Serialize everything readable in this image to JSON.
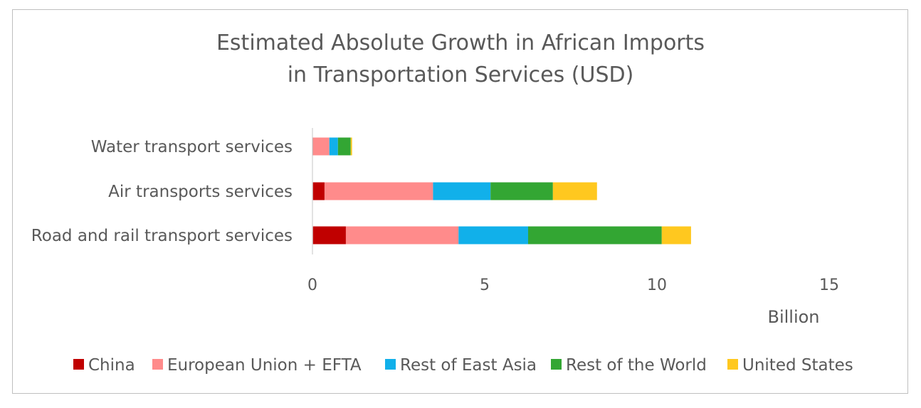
{
  "chart_data": {
    "type": "bar",
    "orientation": "horizontal",
    "stacked": true,
    "title_lines": [
      "Estimated Absolute Growth in African Imports",
      "in Transportation Services (USD)"
    ],
    "categories": [
      "Water transport services",
      "Air transports services",
      "Road and rail transport services"
    ],
    "series": [
      {
        "name": "China",
        "color": "#c00000",
        "values": [
          0.02,
          0.35,
          0.97
        ]
      },
      {
        "name": "European Union + EFTA",
        "color": "#ff8b8b",
        "values": [
          0.47,
          3.15,
          3.27
        ]
      },
      {
        "name": "Rest of East Asia",
        "color": "#11b0ea",
        "values": [
          0.25,
          1.67,
          2.02
        ]
      },
      {
        "name": "Rest of the World",
        "color": "#33a633",
        "values": [
          0.37,
          1.81,
          3.88
        ]
      },
      {
        "name": "United States",
        "color": "#ffc81f",
        "values": [
          0.04,
          1.28,
          0.85
        ]
      }
    ],
    "xlim": [
      0,
      15
    ],
    "xticks": [
      0,
      5,
      10,
      15
    ],
    "xlabel": "Billion",
    "legend_position": "bottom",
    "grid": false
  }
}
